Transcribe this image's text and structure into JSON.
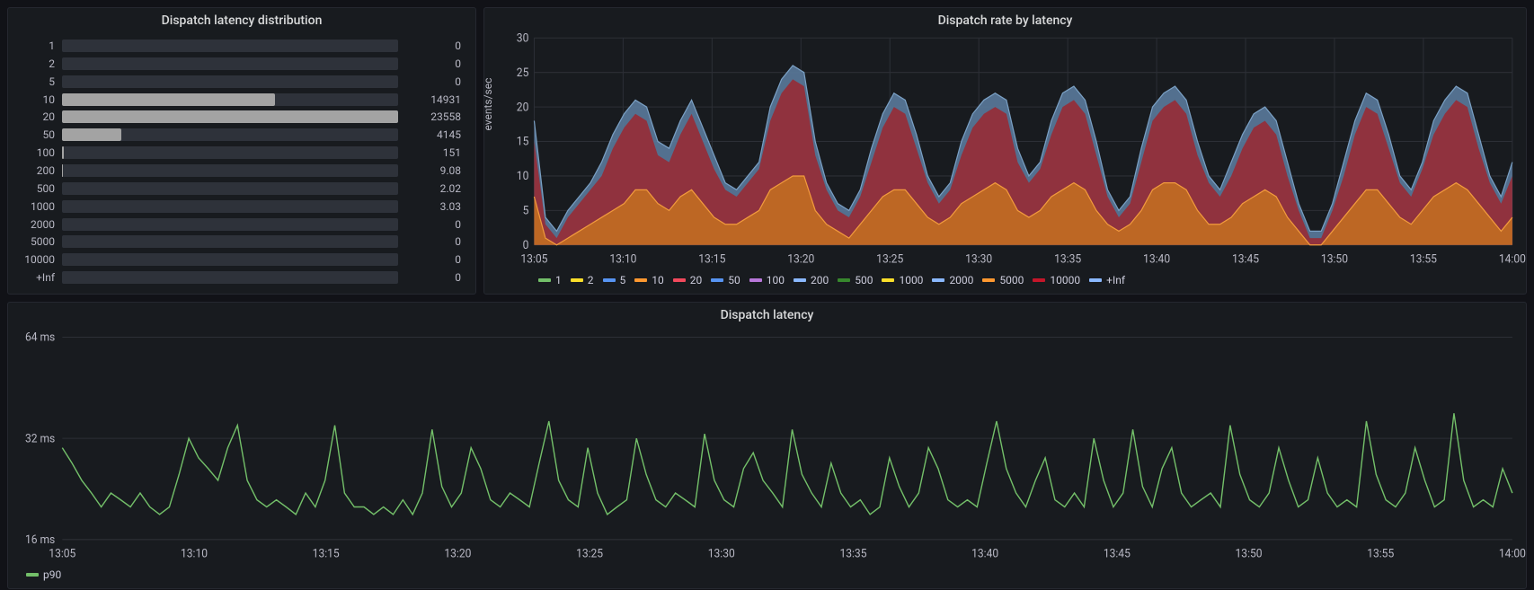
{
  "colors": {
    "panel_bg": "#181b1f",
    "body_bg": "#111217",
    "grid": "#2c2f36",
    "text": "#b8b8c4",
    "bar_empty": "#2e323a",
    "bar_fill": "#a3a3a3"
  },
  "histogram": {
    "title": "Dispatch latency distribution",
    "max": 23558,
    "rows": [
      {
        "label": "1",
        "value": "0",
        "width": 0
      },
      {
        "label": "2",
        "value": "0",
        "width": 0
      },
      {
        "label": "5",
        "value": "0",
        "width": 0
      },
      {
        "label": "10",
        "value": "14931",
        "width": 63.4
      },
      {
        "label": "20",
        "value": "23558",
        "width": 100
      },
      {
        "label": "50",
        "value": "4145",
        "width": 17.6
      },
      {
        "label": "100",
        "value": "151",
        "width": 0.6
      },
      {
        "label": "200",
        "value": "9.08",
        "width": 0.04
      },
      {
        "label": "500",
        "value": "2.02",
        "width": 0.01
      },
      {
        "label": "1000",
        "value": "3.03",
        "width": 0.01
      },
      {
        "label": "2000",
        "value": "0",
        "width": 0
      },
      {
        "label": "5000",
        "value": "0",
        "width": 0
      },
      {
        "label": "10000",
        "value": "0",
        "width": 0
      },
      {
        "label": "+Inf",
        "value": "0",
        "width": 0
      }
    ]
  },
  "stacked": {
    "title": "Dispatch rate by latency",
    "ylabel": "events/sec",
    "ylim": [
      0,
      30
    ],
    "ytick_step": 5,
    "x_ticks": [
      "13:05",
      "13:10",
      "13:15",
      "13:20",
      "13:25",
      "13:30",
      "13:35",
      "13:40",
      "13:45",
      "13:50",
      "13:55",
      "14:00"
    ],
    "legend": [
      {
        "label": "1",
        "color": "#73bf69"
      },
      {
        "label": "2",
        "color": "#fade2a"
      },
      {
        "label": "5",
        "color": "#5794f2"
      },
      {
        "label": "10",
        "color": "#ff9830"
      },
      {
        "label": "20",
        "color": "#f2495c"
      },
      {
        "label": "50",
        "color": "#5794f2"
      },
      {
        "label": "100",
        "color": "#b877d9"
      },
      {
        "label": "200",
        "color": "#8ab8ff"
      },
      {
        "label": "500",
        "color": "#37872d"
      },
      {
        "label": "1000",
        "color": "#fade2a"
      },
      {
        "label": "2000",
        "color": "#8ab8ff"
      },
      {
        "label": "5000",
        "color": "#ff9830"
      },
      {
        "label": "10000",
        "color": "#c4162a"
      },
      {
        "label": "+Inf",
        "color": "#8ab8ff"
      }
    ],
    "layers": [
      {
        "color": "#5a7a9b",
        "opacity": 0.9,
        "name": "total",
        "data": [
          18,
          4,
          2,
          5,
          7,
          9,
          12,
          16,
          19,
          21,
          20,
          15,
          14,
          18,
          21,
          17,
          13,
          9,
          8,
          10,
          12,
          20,
          24,
          26,
          25,
          15,
          9,
          6,
          5,
          8,
          14,
          19,
          22,
          21,
          16,
          10,
          7,
          9,
          15,
          19,
          21,
          22,
          21,
          14,
          10,
          12,
          18,
          22,
          23,
          21,
          15,
          8,
          5,
          7,
          14,
          20,
          22,
          23,
          21,
          15,
          10,
          8,
          12,
          16,
          19,
          20,
          18,
          12,
          6,
          2,
          2,
          6,
          12,
          18,
          22,
          21,
          16,
          10,
          8,
          12,
          18,
          21,
          23,
          22,
          16,
          10,
          7,
          12
        ]
      },
      {
        "color": "#942e3a",
        "opacity": 0.95,
        "name": "20",
        "data": [
          15,
          3,
          1,
          4,
          6,
          8,
          10,
          14,
          17,
          19,
          18,
          13,
          12,
          16,
          19,
          15,
          11,
          8,
          7,
          9,
          11,
          18,
          22,
          24,
          23,
          13,
          8,
          5,
          4,
          7,
          12,
          17,
          20,
          19,
          14,
          9,
          6,
          8,
          13,
          17,
          19,
          20,
          19,
          12,
          9,
          11,
          16,
          20,
          21,
          19,
          13,
          7,
          4,
          6,
          12,
          18,
          20,
          21,
          19,
          13,
          9,
          7,
          10,
          14,
          17,
          18,
          16,
          10,
          5,
          1,
          1,
          5,
          10,
          16,
          20,
          19,
          14,
          9,
          7,
          11,
          16,
          19,
          21,
          20,
          14,
          9,
          6,
          10
        ]
      },
      {
        "color": "#c06a23",
        "opacity": 0.95,
        "name": "10",
        "data": [
          7,
          1,
          0,
          1,
          2,
          3,
          4,
          5,
          6,
          8,
          8,
          6,
          5,
          7,
          8,
          6,
          4,
          3,
          3,
          4,
          5,
          8,
          9,
          10,
          10,
          5,
          3,
          2,
          1,
          3,
          5,
          7,
          8,
          8,
          6,
          4,
          3,
          4,
          6,
          7,
          8,
          9,
          8,
          5,
          4,
          5,
          7,
          8,
          9,
          8,
          5,
          3,
          2,
          3,
          5,
          8,
          9,
          9,
          8,
          5,
          3,
          3,
          4,
          6,
          7,
          8,
          7,
          4,
          2,
          0,
          0,
          2,
          4,
          6,
          8,
          8,
          6,
          4,
          3,
          5,
          7,
          8,
          9,
          8,
          6,
          4,
          2,
          4
        ]
      }
    ],
    "top_outline_color": "#7aa0c4",
    "layer_10_outline": "#f29b3d"
  },
  "p90": {
    "title": "Dispatch latency",
    "legend_label": "p90",
    "legend_color": "#73bf69",
    "line_color": "#73bf69",
    "ylim": [
      16,
      64
    ],
    "y_ticks": [
      "16 ms",
      "32 ms",
      "64 ms"
    ],
    "x_ticks": [
      "13:05",
      "13:10",
      "13:15",
      "13:20",
      "13:25",
      "13:30",
      "13:35",
      "13:40",
      "13:45",
      "13:50",
      "13:55",
      "14:00"
    ],
    "data": [
      30,
      27,
      24,
      22,
      20,
      22,
      21,
      20,
      22,
      20,
      19,
      20,
      25,
      32,
      28,
      26,
      24,
      30,
      35,
      24,
      21,
      20,
      21,
      20,
      19,
      22,
      20,
      24,
      35,
      22,
      20,
      20,
      19,
      20,
      19,
      21,
      19,
      22,
      34,
      23,
      20,
      22,
      30,
      26,
      21,
      20,
      22,
      21,
      20,
      27,
      36,
      24,
      21,
      20,
      30,
      22,
      19,
      20,
      21,
      32,
      25,
      21,
      20,
      22,
      21,
      20,
      33,
      24,
      21,
      20,
      26,
      29,
      24,
      22,
      20,
      34,
      25,
      22,
      20,
      27,
      22,
      20,
      21,
      19,
      20,
      28,
      23,
      20,
      22,
      30,
      26,
      21,
      20,
      21,
      20,
      27,
      36,
      26,
      22,
      20,
      24,
      28,
      21,
      20,
      22,
      20,
      32,
      24,
      20,
      22,
      34,
      23,
      20,
      26,
      30,
      22,
      20,
      21,
      22,
      20,
      35,
      25,
      21,
      20,
      22,
      30,
      24,
      20,
      21,
      28,
      22,
      20,
      21,
      20,
      36,
      25,
      21,
      20,
      22,
      30,
      24,
      20,
      21,
      38,
      24,
      20,
      21,
      20,
      26,
      22
    ]
  }
}
